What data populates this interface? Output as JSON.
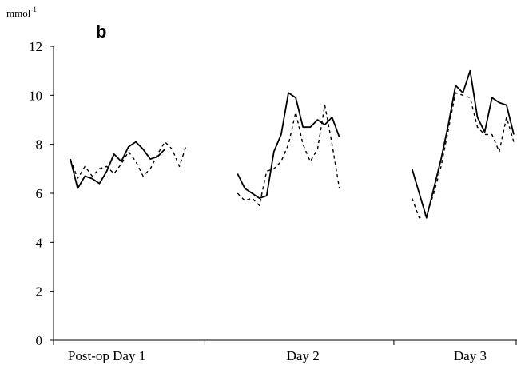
{
  "chart_data": {
    "type": "line",
    "panel_label": "b",
    "unit_label": "mmol",
    "unit_superscript": "-1",
    "ylim": [
      0,
      12
    ],
    "yticks": [
      0,
      2,
      4,
      6,
      8,
      10,
      12
    ],
    "grid": false,
    "xlim": [
      0,
      62
    ],
    "categories": [
      "Post-op Day 1",
      "Day 2",
      "Day 3"
    ],
    "category_positions": [
      6,
      33,
      56
    ],
    "series": [
      {
        "style": "solid",
        "segments": [
          {
            "x": [
              1,
              2,
              3,
              4,
              5,
              6,
              7,
              8,
              9,
              10,
              11,
              12,
              13,
              14
            ],
            "y": [
              7.4,
              6.2,
              6.7,
              6.6,
              6.4,
              6.9,
              7.6,
              7.3,
              7.9,
              8.1,
              7.8,
              7.4,
              7.5,
              7.8
            ]
          },
          {
            "x": [
              24,
              25,
              26,
              27,
              28,
              29,
              30,
              31,
              32,
              33,
              34,
              35,
              36,
              37,
              38
            ],
            "y": [
              6.8,
              6.2,
              6.0,
              5.8,
              5.9,
              7.7,
              8.4,
              10.1,
              9.9,
              8.7,
              8.7,
              9.0,
              8.8,
              9.1,
              8.3
            ]
          },
          {
            "x": [
              48,
              49,
              50,
              51,
              52,
              53,
              54,
              55,
              56,
              57,
              58,
              59,
              60,
              61,
              62
            ],
            "y": [
              7.0,
              6.0,
              5.0,
              6.2,
              7.4,
              8.8,
              10.4,
              10.1,
              11.0,
              9.1,
              8.5,
              9.9,
              9.7,
              9.6,
              8.4
            ]
          }
        ]
      },
      {
        "style": "dashed",
        "segments": [
          {
            "x": [
              1,
              2,
              3,
              4,
              5,
              6,
              7,
              8,
              9,
              10,
              11,
              12,
              13,
              14,
              15,
              16,
              17
            ],
            "y": [
              7.4,
              6.6,
              7.1,
              6.7,
              7.0,
              7.1,
              6.8,
              7.2,
              7.7,
              7.3,
              6.7,
              7.0,
              7.6,
              8.1,
              7.8,
              7.1,
              8.0
            ]
          },
          {
            "x": [
              24,
              25,
              26,
              27,
              28,
              29,
              30,
              31,
              32,
              33,
              34,
              35,
              36,
              37,
              38
            ],
            "y": [
              6.0,
              5.7,
              5.8,
              5.5,
              6.9,
              7.0,
              7.3,
              8.0,
              9.3,
              8.0,
              7.3,
              7.8,
              9.6,
              8.0,
              6.2
            ]
          },
          {
            "x": [
              48,
              49,
              50,
              51,
              52,
              53,
              54,
              55,
              56,
              57,
              58,
              59,
              60,
              61,
              62
            ],
            "y": [
              5.8,
              5.0,
              5.1,
              6.0,
              7.1,
              8.6,
              10.1,
              10.0,
              9.9,
              8.7,
              8.4,
              8.4,
              7.7,
              9.1,
              8.1
            ]
          }
        ]
      }
    ]
  }
}
